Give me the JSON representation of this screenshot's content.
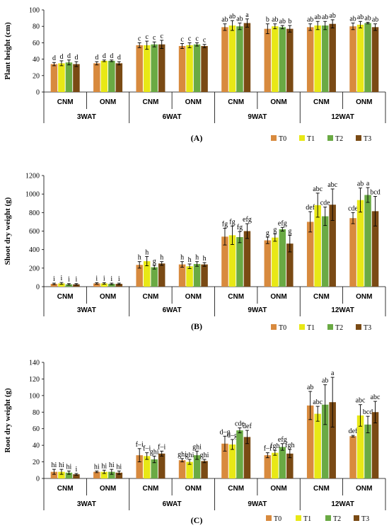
{
  "colors": {
    "T0": "#d88a3e",
    "T1": "#e8e816",
    "T2": "#6aaa44",
    "T3": "#7a4a14"
  },
  "legend": [
    "T0",
    "T1",
    "T2",
    "T3"
  ],
  "chart_data": [
    {
      "type": "bar",
      "panel_label": "(A)",
      "ylabel": "Plant height (cm)",
      "ylim": [
        0,
        100
      ],
      "yticks": [
        0,
        20,
        40,
        60,
        80,
        100
      ],
      "groups": [
        "CNM",
        "ONM",
        "CNM",
        "ONM",
        "CNM",
        "ONM",
        "CNM",
        "ONM"
      ],
      "timepoints": [
        "3WAT",
        "6WAT",
        "9WAT",
        "12WAT"
      ],
      "series": [
        {
          "name": "T0",
          "values": [
            34,
            35,
            57,
            56,
            79,
            77,
            79,
            80
          ],
          "errors": [
            2,
            2,
            3,
            3,
            4,
            6,
            4,
            4
          ],
          "letters": [
            "d",
            "d",
            "c",
            "c",
            "ab",
            "b",
            "ab",
            "ab"
          ]
        },
        {
          "name": "T1",
          "values": [
            35,
            38,
            57,
            57,
            81,
            80,
            81,
            82
          ],
          "errors": [
            3,
            1,
            5,
            3,
            6,
            3,
            5,
            4
          ],
          "letters": [
            "d",
            "d",
            "c",
            "c",
            "ab",
            "ab",
            "ab",
            "ab"
          ]
        },
        {
          "name": "T2",
          "values": [
            36,
            38,
            58,
            58,
            80,
            79,
            81,
            84
          ],
          "errors": [
            3,
            1,
            3,
            2,
            4,
            2,
            5,
            1
          ],
          "letters": [
            "d",
            "d",
            "c",
            "c",
            "ab",
            "ab",
            "ab",
            "ab"
          ]
        },
        {
          "name": "T3",
          "values": [
            34,
            35,
            58,
            56,
            84,
            77,
            83,
            79
          ],
          "errors": [
            3,
            2,
            5,
            2,
            5,
            4,
            5,
            4
          ],
          "letters": [
            "d",
            "d",
            "c",
            "c",
            "a",
            "b",
            "ab",
            "ab"
          ]
        }
      ]
    },
    {
      "type": "bar",
      "panel_label": "(B)",
      "ylabel": "Shoot dry weight (g)",
      "ylim": [
        0,
        1200
      ],
      "yticks": [
        0,
        200,
        400,
        600,
        800,
        1000,
        1200
      ],
      "groups": [
        "CNM",
        "ONM",
        "CNM",
        "ONM",
        "CNM",
        "ONM",
        "CNM",
        "ONM"
      ],
      "timepoints": [
        "3WAT",
        "6WAT",
        "9WAT",
        "12WAT"
      ],
      "series": [
        {
          "name": "T0",
          "values": [
            30,
            35,
            235,
            240,
            540,
            500,
            700,
            740
          ],
          "errors": [
            8,
            8,
            35,
            30,
            90,
            35,
            110,
            60
          ],
          "letters": [
            "i",
            "i",
            "h",
            "h",
            "fg",
            "g",
            "def",
            "cde"
          ]
        },
        {
          "name": "T1",
          "values": [
            35,
            35,
            275,
            220,
            555,
            530,
            880,
            935
          ],
          "errors": [
            10,
            8,
            50,
            25,
            100,
            40,
            130,
            130
          ],
          "letters": [
            "i",
            "i",
            "h",
            "h",
            "fg",
            "g",
            "abc",
            "ab"
          ]
        },
        {
          "name": "T2",
          "values": [
            25,
            30,
            210,
            245,
            535,
            620,
            760,
            990
          ],
          "errors": [
            8,
            8,
            20,
            25,
            60,
            20,
            100,
            80
          ],
          "letters": [
            "i",
            "i",
            "g",
            "h",
            "fg",
            "efg",
            "cde",
            "a"
          ]
        },
        {
          "name": "T3",
          "values": [
            25,
            30,
            250,
            240,
            600,
            465,
            885,
            815
          ],
          "errors": [
            8,
            8,
            20,
            20,
            80,
            90,
            170,
            160
          ],
          "letters": [
            "i",
            "i",
            "h",
            "h",
            "efg",
            "g",
            "abc",
            "bcd"
          ]
        }
      ]
    },
    {
      "type": "bar",
      "panel_label": "(C)",
      "ylabel": "Root dry weight (g)",
      "ylim": [
        0,
        140
      ],
      "yticks": [
        0,
        20,
        40,
        60,
        80,
        100,
        120,
        140
      ],
      "groups": [
        "CNM",
        "ONM",
        "CNM",
        "ONM",
        "CNM",
        "ONM",
        "CNM",
        "ONM"
      ],
      "timepoints": [
        "3WAT",
        "6WAT",
        "9WAT",
        "12WAT"
      ],
      "series": [
        {
          "name": "T0",
          "values": [
            8,
            8,
            28,
            22,
            42,
            28,
            88,
            51
          ],
          "errors": [
            3,
            1,
            8,
            2,
            9,
            3,
            17,
            1
          ],
          "letters": [
            "hi",
            "hi",
            "f–i",
            "ghi",
            "d–g",
            "f–i",
            "ab",
            "def"
          ]
        },
        {
          "name": "T1",
          "values": [
            8,
            8,
            27,
            20,
            41,
            31,
            78,
            76
          ],
          "errors": [
            3,
            2,
            4,
            3,
            6,
            3,
            9,
            13
          ],
          "letters": [
            "hi",
            "hi",
            "f–i",
            "ghi",
            "d–g",
            "fgh",
            "abc",
            "abc"
          ]
        },
        {
          "name": "T2",
          "values": [
            7,
            8,
            23,
            28,
            58,
            38,
            89,
            65
          ],
          "errors": [
            2,
            3,
            4,
            5,
            3,
            4,
            24,
            10
          ],
          "letters": [
            "hi",
            "hi",
            "ghi",
            "ghi",
            "cde",
            "efg",
            "ab",
            "bcd"
          ]
        },
        {
          "name": "T3",
          "values": [
            5,
            7,
            30,
            21,
            50,
            30,
            92,
            80
          ],
          "errors": [
            1,
            2,
            3,
            2,
            8,
            5,
            30,
            13
          ],
          "letters": [
            "i",
            "hi",
            "f–i",
            "ghi",
            "def",
            "fgh",
            "a",
            "abc"
          ]
        }
      ]
    }
  ]
}
